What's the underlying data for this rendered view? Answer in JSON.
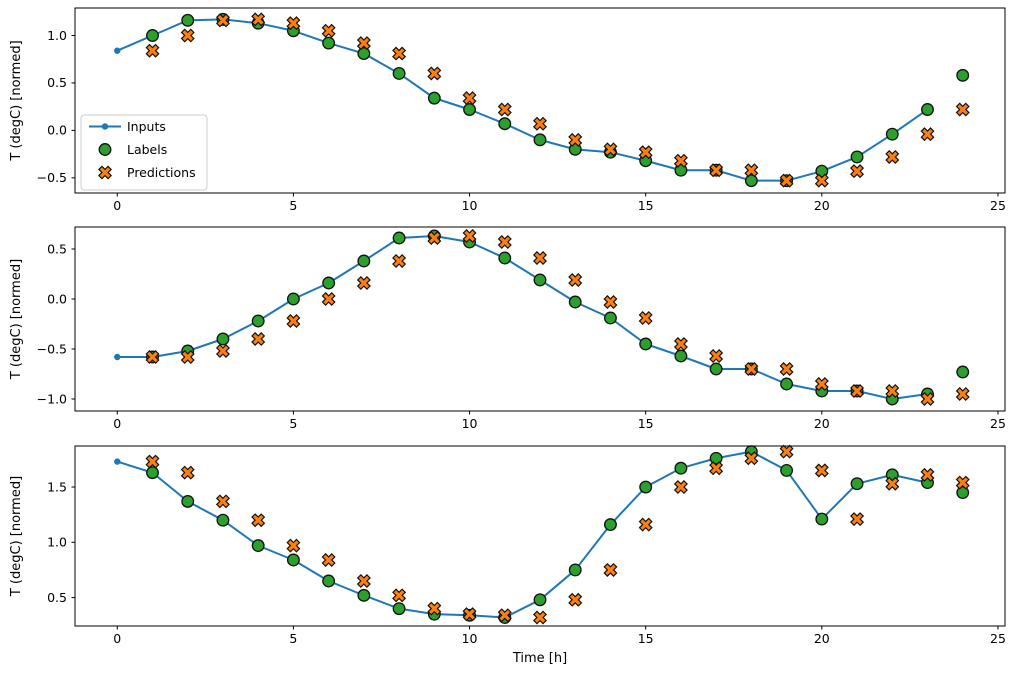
{
  "figure": {
    "xlabel": "Time [h]",
    "ylabel": "T (degC) [normed]",
    "background": "#ffffff",
    "colors": {
      "inputs": "#1f77b4",
      "labels": "#2ca02c",
      "predictions": "#ff7f0e",
      "marker_edge": "#111111",
      "spine": "#000000",
      "legend_border": "#cccccc"
    },
    "legend": {
      "position": "center-left-of-top-subplot",
      "items": [
        {
          "label": "Inputs",
          "marker": "line-dot"
        },
        {
          "label": "Labels",
          "marker": "circle"
        },
        {
          "label": "Predictions",
          "marker": "x"
        }
      ]
    }
  },
  "chart_data": [
    {
      "type": "line",
      "subplot": "top",
      "ylabel": "T (degC) [normed]",
      "xlabel": "",
      "grid": false,
      "xlim": [
        -1.2,
        25.2
      ],
      "ylim": [
        -0.66,
        1.29
      ],
      "x_ticks": [
        0,
        5,
        10,
        15,
        20,
        25
      ],
      "y_ticks": [
        -0.5,
        0.0,
        0.5,
        1.0
      ],
      "series": [
        {
          "name": "Inputs",
          "style": "line+dot",
          "x": [
            0,
            1,
            2,
            3,
            4,
            5,
            6,
            7,
            8,
            9,
            10,
            11,
            12,
            13,
            14,
            15,
            16,
            17,
            18,
            19,
            20,
            21,
            22,
            23
          ],
          "y": [
            0.84,
            1.0,
            1.16,
            1.17,
            1.13,
            1.05,
            0.92,
            0.81,
            0.6,
            0.34,
            0.22,
            0.07,
            -0.1,
            -0.2,
            -0.23,
            -0.32,
            -0.42,
            -0.42,
            -0.53,
            -0.53,
            -0.43,
            -0.28,
            -0.04,
            0.22
          ]
        },
        {
          "name": "Labels",
          "style": "circle",
          "x": [
            1,
            2,
            3,
            4,
            5,
            6,
            7,
            8,
            9,
            10,
            11,
            12,
            13,
            14,
            15,
            16,
            17,
            18,
            19,
            20,
            21,
            22,
            23,
            24
          ],
          "y": [
            1.0,
            1.16,
            1.17,
            1.13,
            1.05,
            0.92,
            0.81,
            0.6,
            0.34,
            0.22,
            0.07,
            -0.1,
            -0.2,
            -0.23,
            -0.32,
            -0.42,
            -0.42,
            -0.53,
            -0.53,
            -0.43,
            -0.28,
            -0.04,
            0.22,
            0.58
          ]
        },
        {
          "name": "Predictions",
          "style": "x",
          "x": [
            1,
            2,
            3,
            4,
            5,
            6,
            7,
            8,
            9,
            10,
            11,
            12,
            13,
            14,
            15,
            16,
            17,
            18,
            19,
            20,
            21,
            22,
            23,
            24
          ],
          "y": [
            0.84,
            1.0,
            1.16,
            1.17,
            1.13,
            1.05,
            0.92,
            0.81,
            0.6,
            0.34,
            0.22,
            0.07,
            -0.1,
            -0.2,
            -0.23,
            -0.32,
            -0.42,
            -0.42,
            -0.53,
            -0.53,
            -0.43,
            -0.28,
            -0.04,
            0.22
          ]
        }
      ]
    },
    {
      "type": "line",
      "subplot": "middle",
      "ylabel": "T (degC) [normed]",
      "xlabel": "",
      "grid": false,
      "xlim": [
        -1.2,
        25.2
      ],
      "ylim": [
        -1.12,
        0.72
      ],
      "x_ticks": [
        0,
        5,
        10,
        15,
        20,
        25
      ],
      "y_ticks": [
        -1.0,
        -0.5,
        0.0,
        0.5
      ],
      "series": [
        {
          "name": "Inputs",
          "style": "line+dot",
          "x": [
            0,
            1,
            2,
            3,
            4,
            5,
            6,
            7,
            8,
            9,
            10,
            11,
            12,
            13,
            14,
            15,
            16,
            17,
            18,
            19,
            20,
            21,
            22,
            23
          ],
          "y": [
            -0.58,
            -0.58,
            -0.52,
            -0.4,
            -0.22,
            0.0,
            0.16,
            0.38,
            0.61,
            0.63,
            0.57,
            0.41,
            0.19,
            -0.03,
            -0.19,
            -0.45,
            -0.57,
            -0.7,
            -0.7,
            -0.85,
            -0.92,
            -0.92,
            -1.0,
            -0.95
          ]
        },
        {
          "name": "Labels",
          "style": "circle",
          "x": [
            1,
            2,
            3,
            4,
            5,
            6,
            7,
            8,
            9,
            10,
            11,
            12,
            13,
            14,
            15,
            16,
            17,
            18,
            19,
            20,
            21,
            22,
            23,
            24
          ],
          "y": [
            -0.58,
            -0.52,
            -0.4,
            -0.22,
            0.0,
            0.16,
            0.38,
            0.61,
            0.63,
            0.57,
            0.41,
            0.19,
            -0.03,
            -0.19,
            -0.45,
            -0.57,
            -0.7,
            -0.7,
            -0.85,
            -0.92,
            -0.92,
            -1.0,
            -0.95,
            -0.73
          ]
        },
        {
          "name": "Predictions",
          "style": "x",
          "x": [
            1,
            2,
            3,
            4,
            5,
            6,
            7,
            8,
            9,
            10,
            11,
            12,
            13,
            14,
            15,
            16,
            17,
            18,
            19,
            20,
            21,
            22,
            23,
            24
          ],
          "y": [
            -0.58,
            -0.58,
            -0.52,
            -0.4,
            -0.22,
            0.0,
            0.16,
            0.38,
            0.61,
            0.63,
            0.57,
            0.41,
            0.19,
            -0.03,
            -0.19,
            -0.45,
            -0.57,
            -0.7,
            -0.7,
            -0.85,
            -0.92,
            -0.92,
            -1.0,
            -0.95
          ]
        }
      ]
    },
    {
      "type": "line",
      "subplot": "bottom",
      "ylabel": "T (degC) [normed]",
      "xlabel": "Time [h]",
      "grid": false,
      "xlim": [
        -1.2,
        25.2
      ],
      "ylim": [
        0.243,
        1.871
      ],
      "x_ticks": [
        0,
        5,
        10,
        15,
        20,
        25
      ],
      "y_ticks": [
        0.5,
        1.0,
        1.5
      ],
      "series": [
        {
          "name": "Inputs",
          "style": "line+dot",
          "x": [
            0,
            1,
            2,
            3,
            4,
            5,
            6,
            7,
            8,
            9,
            10,
            11,
            12,
            13,
            14,
            15,
            16,
            17,
            18,
            19,
            20,
            21,
            22,
            23
          ],
          "y": [
            1.73,
            1.63,
            1.37,
            1.2,
            0.97,
            0.84,
            0.65,
            0.52,
            0.4,
            0.35,
            0.34,
            0.32,
            0.48,
            0.75,
            1.16,
            1.5,
            1.67,
            1.76,
            1.82,
            1.65,
            1.21,
            1.53,
            1.61,
            1.54
          ]
        },
        {
          "name": "Labels",
          "style": "circle",
          "x": [
            1,
            2,
            3,
            4,
            5,
            6,
            7,
            8,
            9,
            10,
            11,
            12,
            13,
            14,
            15,
            16,
            17,
            18,
            19,
            20,
            21,
            22,
            23,
            24
          ],
          "y": [
            1.63,
            1.37,
            1.2,
            0.97,
            0.84,
            0.65,
            0.52,
            0.4,
            0.35,
            0.34,
            0.32,
            0.48,
            0.75,
            1.16,
            1.5,
            1.67,
            1.76,
            1.82,
            1.65,
            1.21,
            1.53,
            1.61,
            1.54,
            1.45
          ]
        },
        {
          "name": "Predictions",
          "style": "x",
          "x": [
            1,
            2,
            3,
            4,
            5,
            6,
            7,
            8,
            9,
            10,
            11,
            12,
            13,
            14,
            15,
            16,
            17,
            18,
            19,
            20,
            21,
            22,
            23,
            24
          ],
          "y": [
            1.73,
            1.63,
            1.37,
            1.2,
            0.97,
            0.84,
            0.65,
            0.52,
            0.4,
            0.35,
            0.34,
            0.32,
            0.48,
            0.75,
            1.16,
            1.5,
            1.67,
            1.76,
            1.82,
            1.65,
            1.21,
            1.53,
            1.61,
            1.54
          ]
        }
      ]
    }
  ]
}
